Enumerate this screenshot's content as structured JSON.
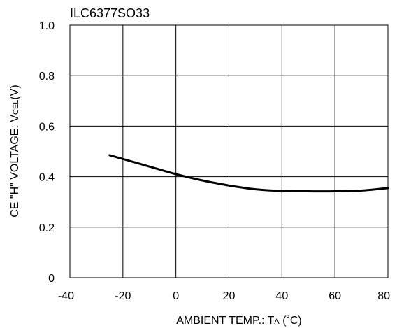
{
  "chart_data": {
    "type": "line",
    "title": "ILC6377SO33",
    "ylabel": {
      "pre": "CE \"H\" VOLTAGE: V",
      "sub": "CEL",
      "post": "(V)"
    },
    "xlabel": {
      "pre": "AMBIENT TEMP.: T",
      "sub": "A",
      "post": " (˚C)"
    },
    "xlim": [
      -40,
      80
    ],
    "ylim": [
      0,
      1.0
    ],
    "xticks": [
      -40,
      -20,
      0,
      20,
      40,
      60,
      80
    ],
    "yticks": [
      0,
      0.2,
      0.4,
      0.6,
      0.8,
      1.0
    ],
    "xtick_labels": [
      "-40",
      "-20",
      "0",
      "20",
      "40",
      "60",
      "80"
    ],
    "ytick_labels": [
      "0",
      "0.2",
      "0.4",
      "0.6",
      "0.8",
      "1.0"
    ],
    "grid": true,
    "series": [
      {
        "x": [
          -25,
          -20,
          -10,
          0,
          10,
          20,
          25,
          30,
          40,
          50,
          60,
          70,
          80
        ],
        "y": [
          0.485,
          0.47,
          0.44,
          0.41,
          0.385,
          0.365,
          0.357,
          0.35,
          0.343,
          0.342,
          0.342,
          0.345,
          0.355
        ]
      }
    ]
  }
}
